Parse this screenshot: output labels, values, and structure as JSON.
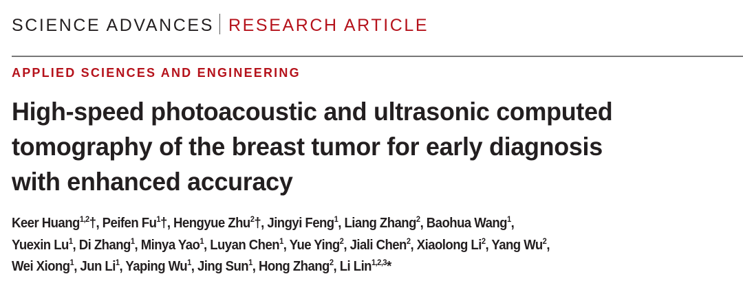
{
  "journal": {
    "name": "SCIENCE ADVANCES",
    "type": "RESEARCH ARTICLE"
  },
  "section": "APPLIED SCIENCES AND ENGINEERING",
  "title_lines": [
    "High-speed photoacoustic and ultrasonic computed",
    "tomography of the breast tumor for early diagnosis",
    "with enhanced accuracy"
  ],
  "author_lines": [
    [
      {
        "name": "Keer Huang",
        "aff": "1,2",
        "mark": "†"
      },
      {
        "name": "Peifen Fu",
        "aff": "1",
        "mark": "†"
      },
      {
        "name": "Hengyue Zhu",
        "aff": "2",
        "mark": "†"
      },
      {
        "name": "Jingyi Feng",
        "aff": "1",
        "mark": ""
      },
      {
        "name": "Liang Zhang",
        "aff": "2",
        "mark": ""
      },
      {
        "name": "Baohua Wang",
        "aff": "1",
        "mark": ""
      }
    ],
    [
      {
        "name": "Yuexin Lu",
        "aff": "1",
        "mark": ""
      },
      {
        "name": "Di Zhang",
        "aff": "1",
        "mark": ""
      },
      {
        "name": "Minya Yao",
        "aff": "1",
        "mark": ""
      },
      {
        "name": "Luyan Chen",
        "aff": "1",
        "mark": ""
      },
      {
        "name": "Yue Ying",
        "aff": "2",
        "mark": ""
      },
      {
        "name": "Jiali Chen",
        "aff": "2",
        "mark": ""
      },
      {
        "name": "Xiaolong Li",
        "aff": "2",
        "mark": ""
      },
      {
        "name": "Yang Wu",
        "aff": "2",
        "mark": ""
      }
    ],
    [
      {
        "name": "Wei Xiong",
        "aff": "1",
        "mark": ""
      },
      {
        "name": "Jun Li",
        "aff": "1",
        "mark": ""
      },
      {
        "name": "Yaping Wu",
        "aff": "1",
        "mark": ""
      },
      {
        "name": "Jing Sun",
        "aff": "1",
        "mark": ""
      },
      {
        "name": "Hong Zhang",
        "aff": "2",
        "mark": ""
      },
      {
        "name": "Li Lin",
        "aff": "1,2,3",
        "mark": "*"
      }
    ]
  ],
  "colors": {
    "accent": "#b5121b",
    "text": "#231f20"
  }
}
